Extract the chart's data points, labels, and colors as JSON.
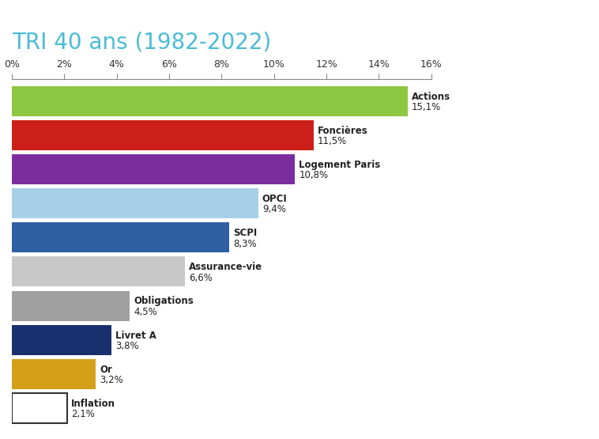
{
  "title": "TRI 40 ans (1982-2022)",
  "title_color": "#4bbcd6",
  "categories": [
    "Actions",
    "Foncières",
    "Logement Paris",
    "OPCI",
    "SCPI",
    "Assurance-vie",
    "Obligations",
    "Livret A",
    "Or",
    "Inflation"
  ],
  "values": [
    15.1,
    11.5,
    10.8,
    9.4,
    8.3,
    6.6,
    4.5,
    3.8,
    3.2,
    2.1
  ],
  "label_line1": [
    "Actions",
    "Foncières",
    "Logement Paris",
    "OPCI",
    "SCPI",
    "Assurance-vie",
    "Obligations",
    "Livret A",
    "Or",
    "Inflation"
  ],
  "label_line2": [
    "15,1%",
    "11,5%",
    "10,8%",
    "9,4%",
    "8,3%",
    "6,6%",
    "4,5%",
    "3,8%",
    "3,2%",
    "2,1%"
  ],
  "colors": [
    "#8dc641",
    "#cc1f1a",
    "#7b2d9e",
    "#a8cfe8",
    "#2e5fa3",
    "#c8c8c8",
    "#a0a0a0",
    "#1a2f6e",
    "#d4a017",
    "#ffffff"
  ],
  "bar_edgecolors": [
    "none",
    "none",
    "none",
    "none",
    "none",
    "none",
    "none",
    "none",
    "none",
    "#333333"
  ],
  "xlim": [
    0,
    16
  ],
  "xticks": [
    0,
    2,
    4,
    6,
    8,
    10,
    12,
    14,
    16
  ],
  "xticklabels": [
    "0%",
    "2%",
    "4%",
    "6%",
    "8%",
    "10%",
    "12%",
    "14%",
    "16%"
  ],
  "figsize": [
    7.58,
    5.55
  ],
  "dpi": 100,
  "background_color": "#ffffff",
  "title_fontsize": 20,
  "label_fontsize": 8.5,
  "tick_fontsize": 9,
  "bar_height": 0.88
}
